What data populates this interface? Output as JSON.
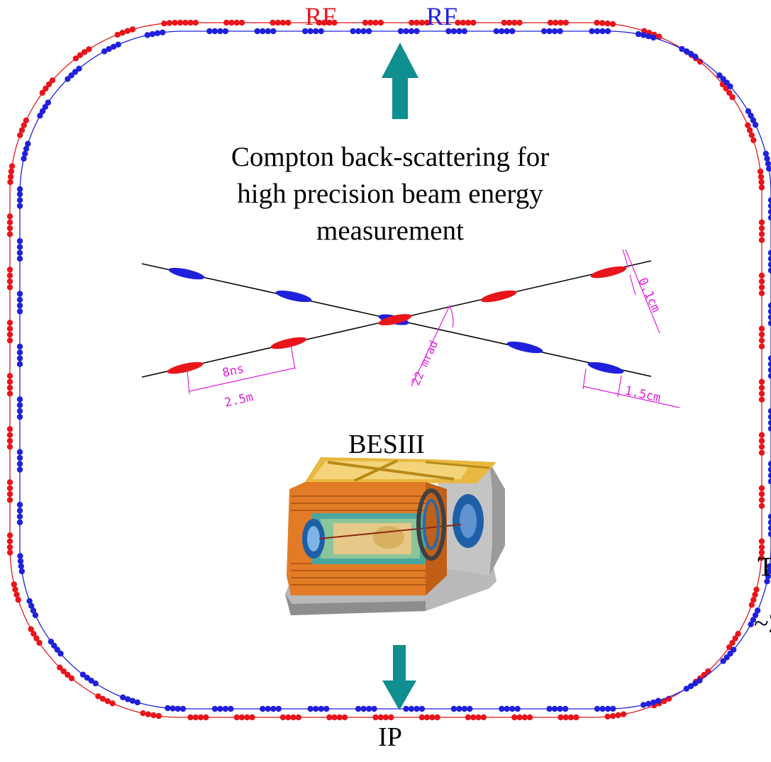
{
  "labels": {
    "rf_left": "RF",
    "rf_right": "RF",
    "compton_line1": "Compton back-scattering for",
    "compton_line2": "high precision beam energy",
    "compton_line3": "measurement",
    "detector": "BESIII",
    "ip": "IP",
    "edge_fragment_1": "T",
    "edge_fragment_2": "~2"
  },
  "crossing_annotations": {
    "bunch_spacing_time": "8ns",
    "bunch_spacing_length": "2.5m",
    "crossing_angle": "22 mrad",
    "bunch_width": "0.1cm",
    "bunch_length": "1.5cm"
  },
  "colors": {
    "electron_ring": "#e8151b",
    "positron_ring": "#1f20dc",
    "arrow": "#0f8f8f",
    "annotation": "#e01ee0"
  },
  "icons": {
    "arrow_up": "teal-arrow-up-icon",
    "arrow_down": "teal-arrow-down-icon",
    "detector_image": "besiii-detector-cutaway"
  }
}
